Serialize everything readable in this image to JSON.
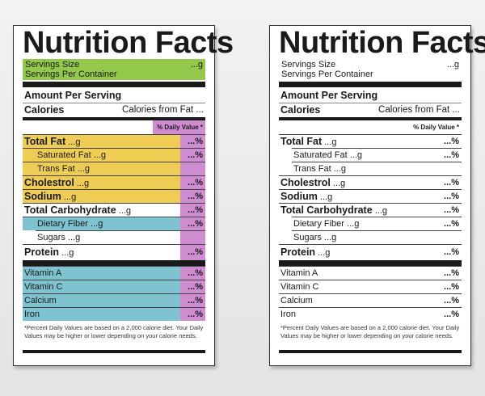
{
  "title": "Nutrition Facts",
  "serving": {
    "size_label": "Servings Size",
    "size_value": "...g",
    "per_container_label": "Servings Per Container"
  },
  "amount_per_serving": "Amount Per Serving",
  "calories_label": "Calories",
  "calories_from_fat": "Calories from Fat ...",
  "daily_value_header": "% Daily Value *",
  "nutrients": [
    {
      "name": "Total Fat",
      "amount": "...g",
      "dv": "...%",
      "bold": true,
      "indent": false,
      "color": "yellow"
    },
    {
      "name": "Saturated Fat",
      "amount": "...g",
      "dv": "...%",
      "bold": false,
      "indent": true,
      "color": "yellow"
    },
    {
      "name": "Trans Fat",
      "amount": "...g",
      "dv": "",
      "bold": false,
      "indent": true,
      "color": "yellow"
    },
    {
      "name": "Cholestrol",
      "amount": "...g",
      "dv": "...%",
      "bold": true,
      "indent": false,
      "color": "yellow"
    },
    {
      "name": "Sodium",
      "amount": "...g",
      "dv": "...%",
      "bold": true,
      "indent": false,
      "color": "yellow"
    },
    {
      "name": "Total Carbohydrate",
      "amount": "...g",
      "dv": "...%",
      "bold": true,
      "indent": false,
      "color": "none"
    },
    {
      "name": "Dietary Fiber",
      "amount": "...g",
      "dv": "...%",
      "bold": false,
      "indent": true,
      "color": "teal"
    },
    {
      "name": "Sugars",
      "amount": "...g",
      "dv": "",
      "bold": false,
      "indent": true,
      "color": "none"
    },
    {
      "name": "Protein",
      "amount": "...g",
      "dv": "...%",
      "bold": true,
      "indent": false,
      "color": "none"
    }
  ],
  "vitamins": [
    {
      "name": "Vitamin A",
      "dv": "...%"
    },
    {
      "name": "Vitamin C",
      "dv": "...%"
    },
    {
      "name": "Calcium",
      "dv": "...%"
    },
    {
      "name": "Iron",
      "dv": "...%"
    }
  ],
  "footnote": "*Percent Daily Values are based on a 2,000 calorie diet. Your Daily Values may be higher or lower depending on your calorie needs.",
  "colors": {
    "servings_band": "#93c84a",
    "fat_sodium_band": "#efcd55",
    "daily_value_column": "#d08cd0",
    "fiber_vitamin_band": "#7ec3cf"
  }
}
